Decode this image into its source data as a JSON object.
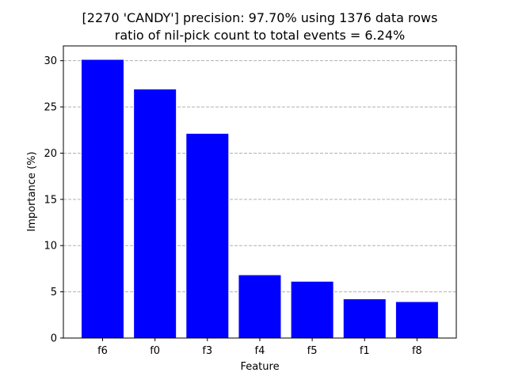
{
  "chart_data": {
    "type": "bar",
    "title": "[2270 'CANDY'] precision: 97.70% using 1376 data rows",
    "subtitle": "ratio of nil-pick count to total events = 6.24%",
    "xlabel": "Feature",
    "ylabel": "Importance (%)",
    "categories": [
      "f6",
      "f0",
      "f3",
      "f4",
      "f5",
      "f1",
      "f8"
    ],
    "values": [
      30.1,
      26.9,
      22.1,
      6.8,
      6.1,
      4.2,
      3.9
    ],
    "ylim": [
      0,
      31.6
    ],
    "yticks": [
      0,
      5,
      10,
      15,
      20,
      25,
      30
    ],
    "grid": "y-dashed",
    "legend": "none",
    "bar_color": "#0000ff",
    "grid_color": "#b0b0b0"
  }
}
